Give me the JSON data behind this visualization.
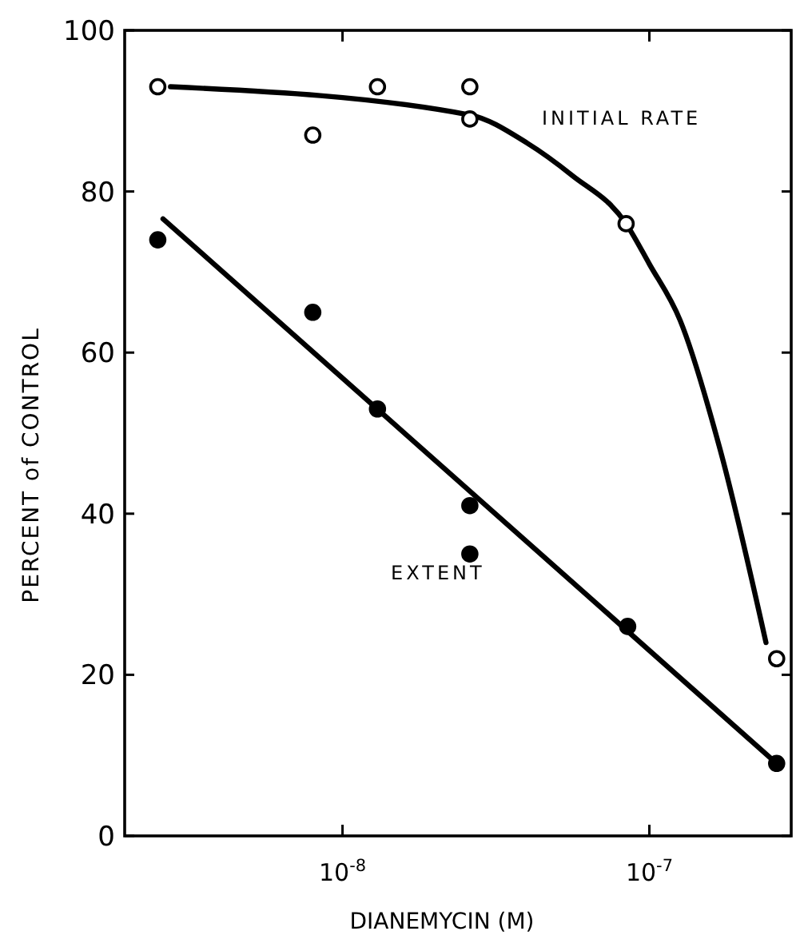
{
  "chart_data": {
    "type": "scatter",
    "xlabel": "DIANEMYCIN  (M)",
    "ylabel": "PERCENT of CONTROL",
    "log": "x",
    "xlim": [
      1.95e-09,
      2.9e-07
    ],
    "ylim": [
      0,
      100
    ],
    "xticks": [
      {
        "value": 1e-08,
        "label": "10$^{-8}$"
      },
      {
        "value": 1e-07,
        "label": "10$^{-7}$"
      }
    ],
    "yticks": [
      0,
      20,
      40,
      60,
      80,
      100
    ],
    "grid": false,
    "series": [
      {
        "marker": "circle",
        "color": "#ffffff",
        "x": [
          2.5e-09,
          8e-09,
          1.3e-08,
          2.6e-08,
          2.6e-08,
          8.4e-08,
          2.6e-07
        ],
        "values": [
          93,
          87,
          93,
          93,
          89,
          76,
          22
        ]
      },
      {
        "marker": "circle",
        "color": "#000000",
        "x": [
          2.5e-09,
          8e-09,
          1.3e-08,
          2.6e-08,
          2.6e-08,
          8.5e-08,
          2.6e-07
        ],
        "values": [
          74,
          65,
          53,
          41,
          35,
          26,
          9
        ]
      },
      {
        "type": "line",
        "marker": "none",
        "name": "INITIAL RATE",
        "color": "#000000",
        "x": [
          2.75e-09,
          2.6e-08,
          4e-08,
          5.6e-08,
          8.4e-08,
          1e-07,
          1.26e-07,
          1.7e-07,
          2.4e-07
        ],
        "values": [
          93,
          89.5,
          86,
          82,
          76,
          71,
          64,
          48,
          24
        ]
      },
      {
        "type": "line",
        "marker": "none",
        "name": "EXTENT",
        "color": "#000000",
        "x": [
          2.6e-09,
          2.6e-07
        ],
        "values": [
          76.6,
          9
        ]
      }
    ]
  }
}
